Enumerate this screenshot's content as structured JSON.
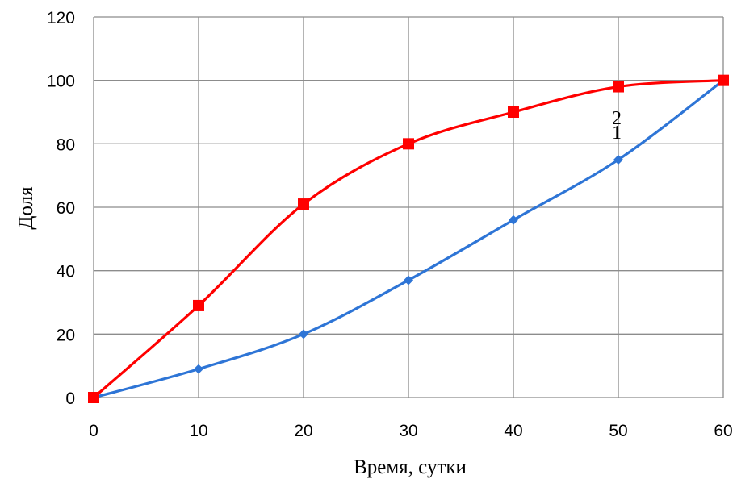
{
  "chart_data": {
    "type": "line",
    "title": "",
    "xlabel": "Время, сутки",
    "ylabel": "Доля",
    "xlim": [
      0,
      60
    ],
    "ylim": [
      0,
      120
    ],
    "x_ticks": [
      0,
      10,
      20,
      30,
      40,
      50,
      60
    ],
    "y_ticks": [
      0,
      20,
      40,
      60,
      80,
      100,
      120
    ],
    "grid": true,
    "legend": "none",
    "series": [
      {
        "label": "1",
        "color": "#2e75d6",
        "marker": "diamond",
        "x": [
          0,
          10,
          20,
          30,
          40,
          50,
          60
        ],
        "y": [
          0,
          9,
          20,
          37,
          56,
          75,
          100
        ]
      },
      {
        "label": "2",
        "color": "#ff0000",
        "marker": "square",
        "x": [
          0,
          10,
          20,
          30,
          40,
          50,
          60
        ],
        "y": [
          0,
          29,
          61,
          80,
          90,
          98,
          100
        ]
      }
    ],
    "annotations": [
      "2",
      "1"
    ]
  }
}
